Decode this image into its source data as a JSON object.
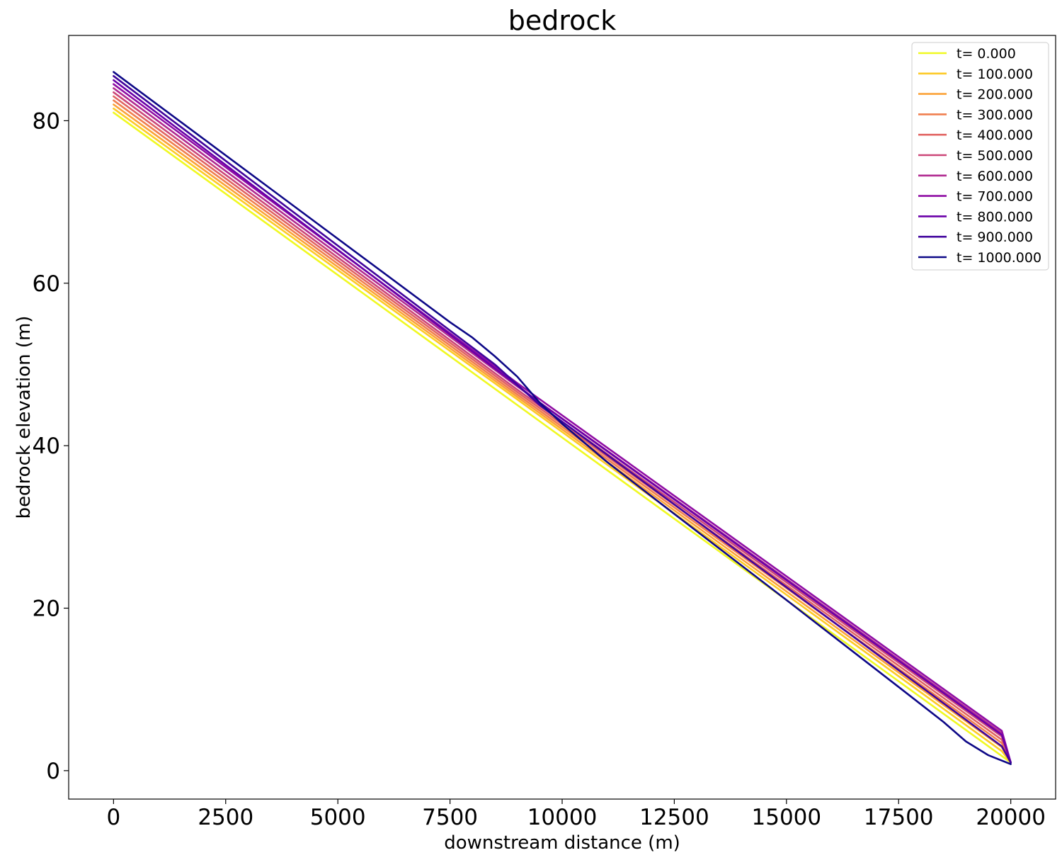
{
  "chart_data": {
    "type": "line",
    "title": "bedrock",
    "xlabel": "downstream distance (m)",
    "ylabel": "bedrock elevation (m)",
    "xlim": [
      -1000,
      21000
    ],
    "ylim": [
      -3.5,
      90.5
    ],
    "xticks": [
      0,
      2500,
      5000,
      7500,
      10000,
      12500,
      15000,
      17500,
      20000
    ],
    "yticks": [
      0,
      20,
      40,
      60,
      80
    ],
    "grid": false,
    "legend_position": "top-right",
    "series": [
      {
        "name": "t= 0.000",
        "color": "#f0f921",
        "points": [
          [
            0,
            81.0
          ],
          [
            19800,
            1.8
          ],
          [
            20000,
            1.0
          ]
        ]
      },
      {
        "name": "t= 100.000",
        "color": "#fdca26",
        "points": [
          [
            0,
            81.5
          ],
          [
            9000,
            45.7
          ],
          [
            19800,
            2.4
          ],
          [
            20000,
            1.0
          ]
        ]
      },
      {
        "name": "t= 200.000",
        "color": "#fba238",
        "points": [
          [
            0,
            82.0
          ],
          [
            9000,
            46.0
          ],
          [
            19800,
            2.9
          ],
          [
            20000,
            1.0
          ]
        ]
      },
      {
        "name": "t= 300.000",
        "color": "#f07f4f",
        "points": [
          [
            0,
            82.5
          ],
          [
            9000,
            46.3
          ],
          [
            19800,
            3.4
          ],
          [
            20000,
            1.0
          ]
        ]
      },
      {
        "name": "t= 400.000",
        "color": "#e16462",
        "points": [
          [
            0,
            83.0
          ],
          [
            9000,
            46.6
          ],
          [
            19800,
            3.8
          ],
          [
            20000,
            1.0
          ]
        ]
      },
      {
        "name": "t= 500.000",
        "color": "#cc4778",
        "points": [
          [
            0,
            83.5
          ],
          [
            9000,
            46.9
          ],
          [
            19800,
            4.2
          ],
          [
            20000,
            1.0
          ]
        ]
      },
      {
        "name": "t= 600.000",
        "color": "#b12a90",
        "points": [
          [
            0,
            84.0
          ],
          [
            9000,
            47.3
          ],
          [
            19800,
            4.6
          ],
          [
            20000,
            1.0
          ]
        ]
      },
      {
        "name": "t= 700.000",
        "color": "#8f0da4",
        "points": [
          [
            0,
            84.5
          ],
          [
            9000,
            47.7
          ],
          [
            19800,
            4.9
          ],
          [
            20000,
            1.0
          ]
        ]
      },
      {
        "name": "t= 800.000",
        "color": "#6a00a8",
        "points": [
          [
            0,
            85.0
          ],
          [
            8500,
            49.5
          ],
          [
            9500,
            45.3
          ],
          [
            19800,
            4.4
          ],
          [
            20000,
            1.0
          ]
        ]
      },
      {
        "name": "t= 900.000",
        "color": "#41049d",
        "points": [
          [
            0,
            85.5
          ],
          [
            8500,
            50.0
          ],
          [
            9500,
            45.0
          ],
          [
            19800,
            3.0
          ],
          [
            20000,
            1.0
          ]
        ]
      },
      {
        "name": "t= 1000.000",
        "color": "#0d0887",
        "points": [
          [
            0,
            86.0
          ],
          [
            7500,
            55.2
          ],
          [
            8000,
            53.3
          ],
          [
            8500,
            51.0
          ],
          [
            9000,
            48.5
          ],
          [
            9500,
            45.3
          ],
          [
            10000,
            42.7
          ],
          [
            11000,
            38.0
          ],
          [
            12500,
            31.6
          ],
          [
            15000,
            21.0
          ],
          [
            17500,
            10.3
          ],
          [
            18500,
            6.0
          ],
          [
            19000,
            3.6
          ],
          [
            19500,
            1.9
          ],
          [
            20000,
            0.8
          ]
        ]
      }
    ]
  }
}
